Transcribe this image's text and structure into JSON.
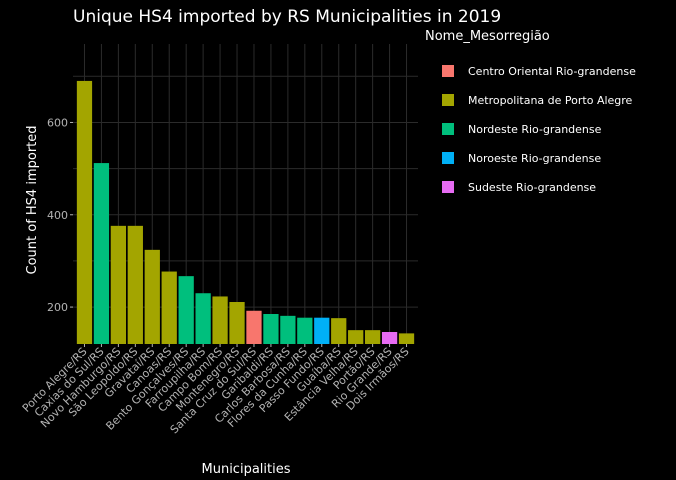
{
  "chart_data": {
    "type": "bar",
    "title": "Unique HS4 imported by RS Municipalities in 2019",
    "xlabel": "Municipalities",
    "ylabel": "Count of HS4 imported",
    "ylim": [
      120,
      770
    ],
    "yticks": [
      200,
      400,
      600
    ],
    "grid": true,
    "legend_title": "Nome_Mesorregião",
    "legend_position": "right",
    "categories": [
      "Porto Alegre/RS",
      "Caxias do Sul/RS",
      "Novo Hamburgo/RS",
      "São Leopoldo/RS",
      "Gravataí/RS",
      "Canoas/RS",
      "Bento Gonçalves/RS",
      "Farroupilha/RS",
      "Campo Bom/RS",
      "Montenegro/RS",
      "Santa Cruz do Sul/RS",
      "Garibaldi/RS",
      "Carlos Barbosa/RS",
      "Flores da Cunha/RS",
      "Passo Fundo/RS",
      "Guaíba/RS",
      "Estância Velha/RS",
      "Portão/RS",
      "Rio Grande/RS",
      "Dois Irmãos/RS"
    ],
    "values": [
      690,
      512,
      376,
      376,
      324,
      277,
      267,
      230,
      223,
      211,
      192,
      185,
      181,
      177,
      177,
      176,
      150,
      150,
      146,
      143
    ],
    "groups": [
      "Metropolitana de Porto Alegre",
      "Nordeste Rio-grandense",
      "Metropolitana de Porto Alegre",
      "Metropolitana de Porto Alegre",
      "Metropolitana de Porto Alegre",
      "Metropolitana de Porto Alegre",
      "Nordeste Rio-grandense",
      "Nordeste Rio-grandense",
      "Metropolitana de Porto Alegre",
      "Metropolitana de Porto Alegre",
      "Centro Oriental Rio-grandense",
      "Nordeste Rio-grandense",
      "Nordeste Rio-grandense",
      "Nordeste Rio-grandense",
      "Noroeste Rio-grandense",
      "Metropolitana de Porto Alegre",
      "Metropolitana de Porto Alegre",
      "Metropolitana de Porto Alegre",
      "Sudeste Rio-grandense",
      "Metropolitana de Porto Alegre"
    ],
    "legend": [
      {
        "name": "Centro Oriental Rio-grandense",
        "color": "#F8766D"
      },
      {
        "name": "Metropolitana de Porto Alegre",
        "color": "#A3A500"
      },
      {
        "name": "Nordeste Rio-grandense",
        "color": "#00BF7D"
      },
      {
        "name": "Noroeste Rio-grandense",
        "color": "#00B0F6"
      },
      {
        "name": "Sudeste Rio-grandense",
        "color": "#E76BF3"
      }
    ]
  }
}
